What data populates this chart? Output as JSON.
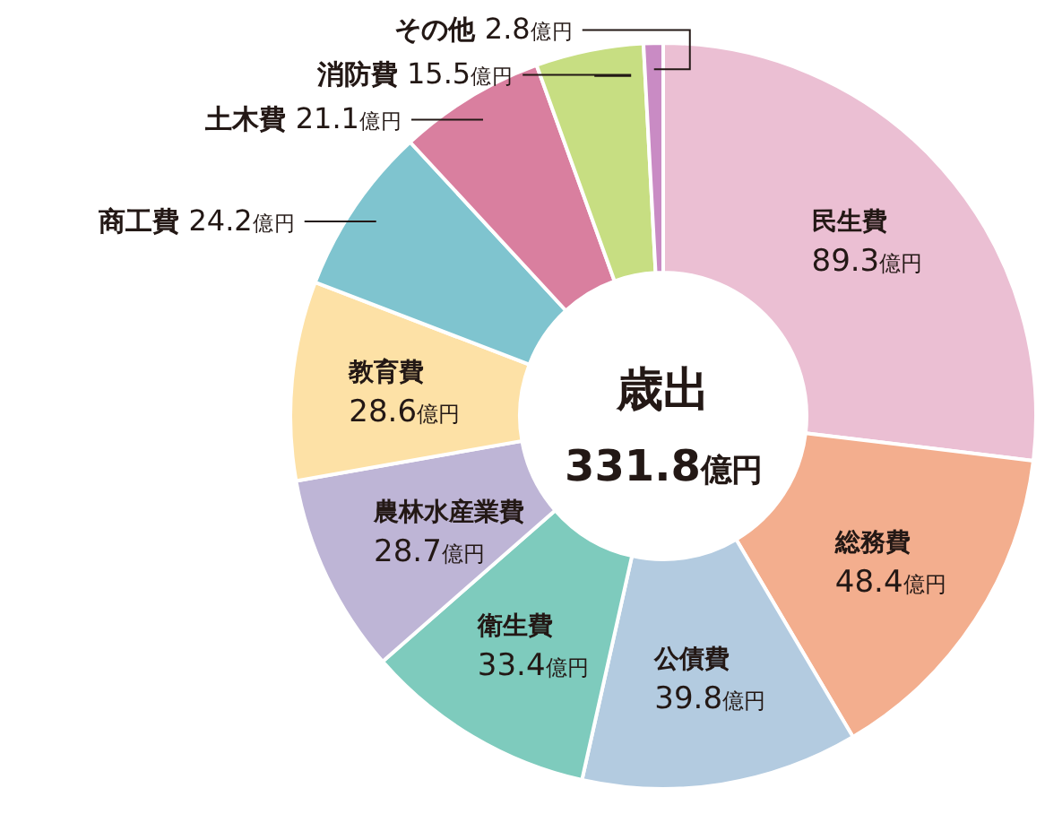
{
  "chart_data": {
    "type": "donut",
    "title": "歳出",
    "subtitle": "331.8億円",
    "categories": [
      "民生費",
      "総務費",
      "公債費",
      "衛生費",
      "農林水産業費",
      "教育費",
      "商工費",
      "土木費",
      "消防費",
      "その他"
    ],
    "values": [
      89.3,
      48.4,
      39.8,
      33.4,
      28.7,
      28.6,
      24.2,
      21.1,
      15.5,
      2.8
    ],
    "value_labels": [
      "89.3億円",
      "48.4億円",
      "39.8億円",
      "33.4億円",
      "28.7億円",
      "28.6億円",
      "24.2億円",
      "21.1億円",
      "15.5億円",
      "2.8億円"
    ],
    "colors": [
      "#ebbfd3",
      "#f3ae8e",
      "#b3cbe0",
      "#7ecbbd",
      "#beb5d6",
      "#fde1a6",
      "#7fc4cf",
      "#d97f9f",
      "#c7de82",
      "#c98bc4"
    ]
  }
}
